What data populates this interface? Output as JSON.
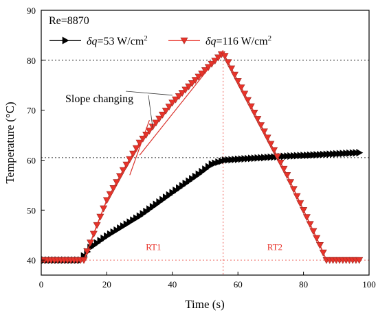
{
  "chart_data": {
    "type": "line",
    "title": "",
    "xlabel": "Time (s)",
    "ylabel": "Temperature (°C)",
    "xlim": [
      0,
      100
    ],
    "ylim": [
      37,
      90
    ],
    "x_ticks": [
      0,
      20,
      40,
      60,
      80,
      100
    ],
    "y_ticks": [
      40,
      50,
      60,
      70,
      80,
      90
    ],
    "grid": false,
    "reference_lines": {
      "horizontal_y": [
        80,
        60.5,
        40
      ],
      "vertical_x": [
        55.5
      ]
    },
    "legend_position": "top",
    "annotation_reynolds": "Re=8870",
    "annotation_slope": "Slope changing",
    "regions": [
      {
        "label": "RT1",
        "x_from": 13,
        "x_to": 55.5
      },
      {
        "label": "RT2",
        "x_from": 55.5,
        "x_to": 87
      }
    ],
    "series": [
      {
        "name": "53 W/cm",
        "name_prefix": "δq=",
        "name_unit_sup": "2",
        "marker": "right-triangle",
        "color": "#000000",
        "points": [
          [
            0,
            40
          ],
          [
            12,
            40
          ],
          [
            15,
            42.5
          ],
          [
            20,
            44.8
          ],
          [
            30,
            48.8
          ],
          [
            40,
            53.5
          ],
          [
            48,
            57.2
          ],
          [
            52,
            59.2
          ],
          [
            56,
            60
          ],
          [
            65,
            60.4
          ],
          [
            75,
            60.8
          ],
          [
            85,
            61.1
          ],
          [
            97,
            61.5
          ]
        ]
      },
      {
        "name": "116 W/cm",
        "name_prefix": "δq=",
        "name_unit_sup": "2",
        "marker": "down-triangle",
        "color": "#e8332a",
        "points": [
          [
            0,
            40
          ],
          [
            13,
            40
          ],
          [
            17,
            47
          ],
          [
            20,
            52
          ],
          [
            25,
            58
          ],
          [
            30,
            63.5
          ],
          [
            40,
            71.5
          ],
          [
            50,
            78
          ],
          [
            55.5,
            81.5
          ],
          [
            65,
            69.5
          ],
          [
            75,
            57
          ],
          [
            85,
            43
          ],
          [
            87,
            40
          ],
          [
            97,
            40
          ]
        ]
      }
    ],
    "slope_lines": [
      {
        "from": [
          27,
          57
        ],
        "to": [
          33,
          68
        ]
      },
      {
        "from": [
          30,
          61
        ],
        "to": [
          55.5,
          82
        ]
      }
    ]
  }
}
